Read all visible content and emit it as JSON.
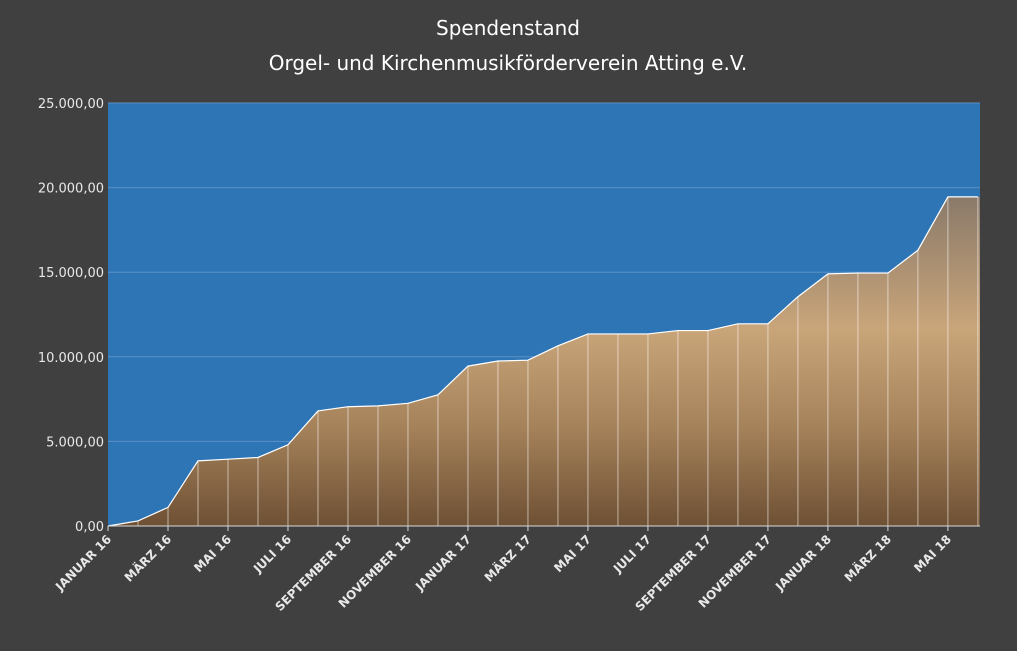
{
  "chart_data": {
    "type": "area",
    "title": "Spendenstand",
    "subtitle": "Orgel- und Kirchenmusikförderverein Atting e.V.",
    "categories": [
      "JANUAR 16",
      null,
      "MÄRZ 16",
      null,
      "MAI 16",
      null,
      "JULI 16",
      null,
      "SEPTEMBER 16",
      null,
      "NOVEMBER 16",
      null,
      "JANUAR 17",
      null,
      "MÄRZ 17",
      null,
      "MAI 17",
      null,
      "JULI 17",
      null,
      "SEPTEMBER 17",
      null,
      "NOVEMBER 17",
      null,
      "JANUAR 18",
      null,
      "MÄRZ 18",
      null,
      "MAI 18",
      null
    ],
    "values": [
      0,
      300,
      1100,
      3850,
      3950,
      4050,
      4800,
      6800,
      7050,
      7100,
      7250,
      7750,
      9450,
      9750,
      9800,
      10650,
      11350,
      11350,
      11350,
      11550,
      11550,
      11950,
      11950,
      13550,
      14900,
      14950,
      14950,
      16300,
      19450,
      19450
    ],
    "color": "#b08a5c",
    "background": "#2e75b6",
    "ylim": [
      0,
      25000
    ],
    "yticks": [
      {
        "value": 0,
        "label": "0,00"
      },
      {
        "value": 5000,
        "label": "5.000,00"
      },
      {
        "value": 10000,
        "label": "10.000,00"
      },
      {
        "value": 15000,
        "label": "15.000,00"
      },
      {
        "value": 20000,
        "label": "20.000,00"
      },
      {
        "value": 25000,
        "label": "25.000,00"
      }
    ],
    "grid": true
  }
}
